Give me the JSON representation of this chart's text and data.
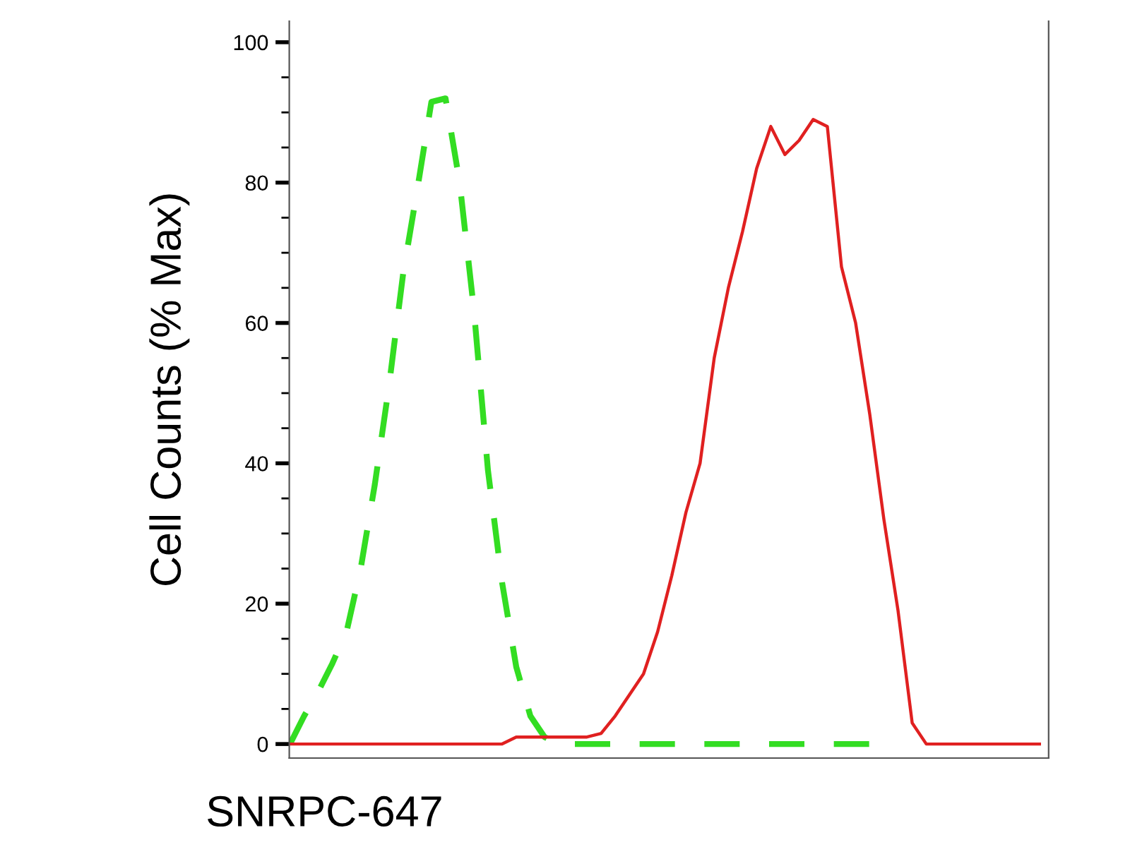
{
  "chart_data": {
    "type": "line",
    "xlabel": "SNRPC-647",
    "ylabel": "Cell Counts (% Max)",
    "categories": [
      null,
      null,
      null,
      null,
      null,
      null,
      null,
      null,
      null,
      null,
      null,
      null,
      null,
      null,
      null,
      null,
      null,
      null,
      null,
      null,
      null,
      null,
      null,
      null,
      null,
      null,
      null,
      null,
      null,
      null,
      null,
      null,
      null,
      null,
      null,
      null,
      null,
      null,
      null,
      null,
      null,
      null,
      null,
      null,
      null,
      null,
      null,
      null,
      null,
      null,
      null,
      null,
      null,
      null
    ],
    "series": [
      {
        "color": "#33dd22",
        "line_style": "dashed",
        "values": [
          0,
          4,
          7.5,
          11.5,
          16,
          25,
          37,
          51,
          67,
          79,
          91.5,
          92,
          80,
          62,
          39,
          23,
          11,
          4,
          1,
          0,
          0,
          0,
          0,
          0,
          0,
          0,
          0,
          0,
          0,
          0,
          0,
          0,
          0,
          0,
          0,
          0,
          0,
          0,
          0,
          0,
          0,
          0,
          null,
          null,
          null,
          null,
          null,
          null,
          null,
          null,
          null,
          null,
          null,
          null
        ]
      },
      {
        "color": "#e02020",
        "line_style": "solid",
        "values": [
          0,
          0,
          0,
          0,
          0,
          0,
          0,
          0,
          0,
          0,
          0,
          0,
          0,
          0,
          0,
          0,
          1,
          1,
          1,
          1,
          1,
          1,
          1.5,
          4,
          7,
          10,
          16,
          24,
          33,
          40,
          55,
          65,
          73,
          82,
          88,
          84,
          86,
          89,
          88,
          68,
          60,
          47,
          32,
          19,
          3,
          0,
          0,
          0,
          0,
          0,
          0,
          0,
          0,
          0
        ]
      }
    ],
    "ylim": [
      -2,
      103
    ],
    "yticks": [
      0,
      20,
      40,
      60,
      80,
      100
    ],
    "grid": false,
    "legend": false,
    "marker": "none"
  }
}
